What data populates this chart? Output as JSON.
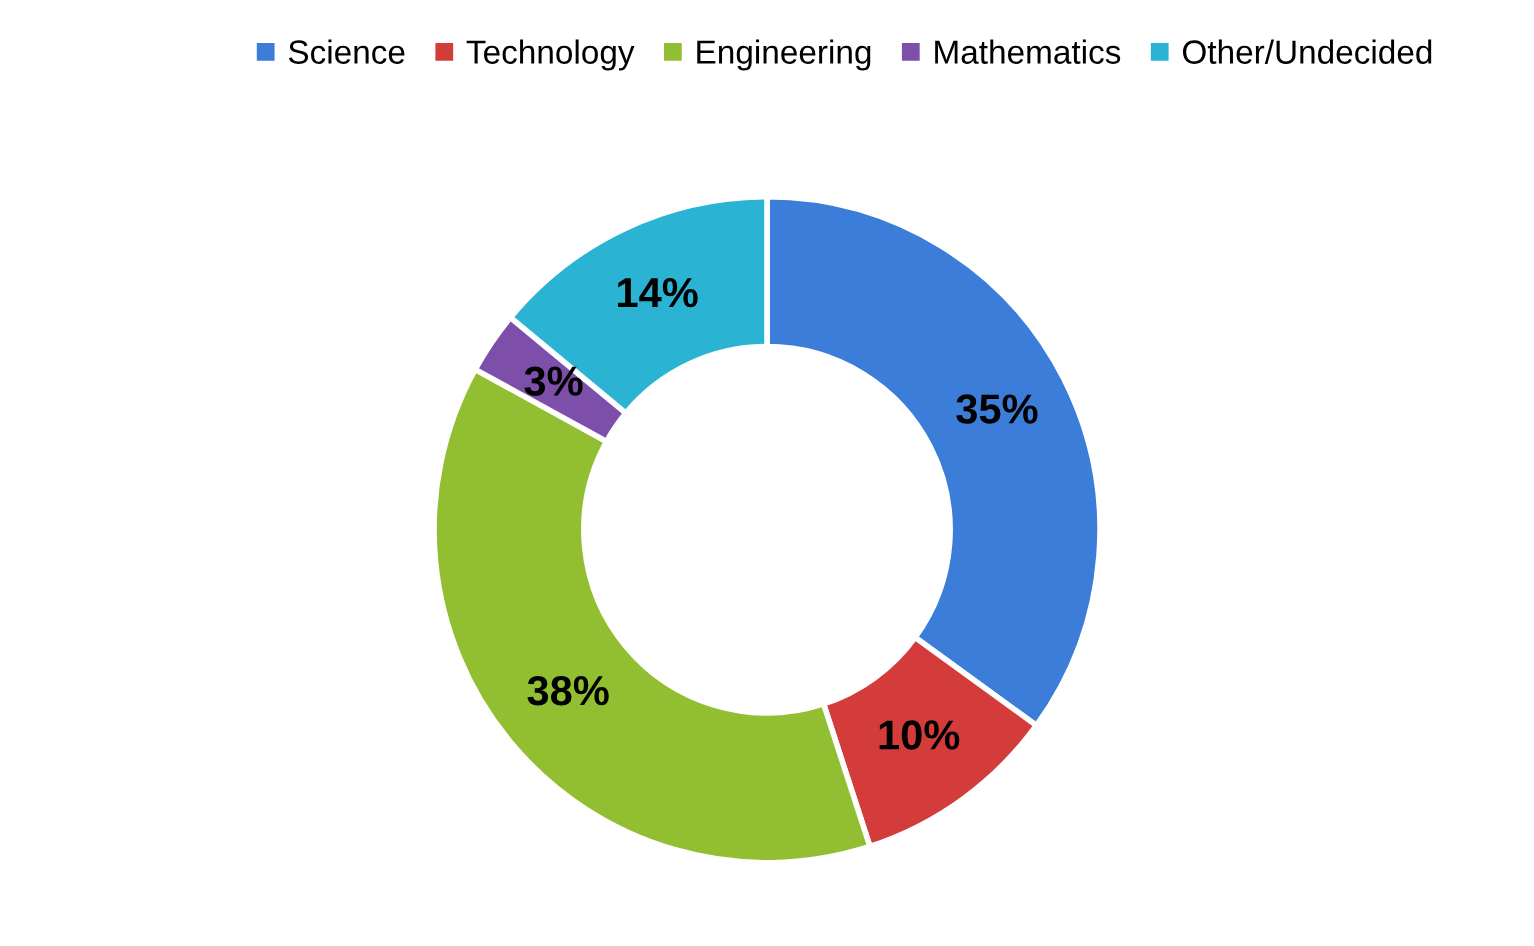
{
  "chart_data": {
    "type": "donut",
    "categories": [
      "Science",
      "Technology",
      "Engineering",
      "Mathematics",
      "Other/Undecided"
    ],
    "values": [
      35,
      10,
      38,
      3,
      14
    ],
    "colors": [
      "#3b7dd8",
      "#d43c3c",
      "#92bf32",
      "#7d4fab",
      "#2bb3d3"
    ],
    "value_labels": [
      "35%",
      "10%",
      "38%",
      "3%",
      "14%"
    ],
    "legend": "top"
  }
}
